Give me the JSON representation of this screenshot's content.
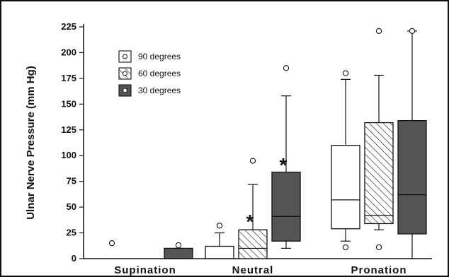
{
  "chart_data": {
    "type": "box",
    "ylabel": "Ulnar Nerve Pressure (mm Hg)",
    "ylim": [
      0,
      225
    ],
    "yticks": [
      "0",
      "25",
      "50",
      "75",
      "100",
      "125",
      "150",
      "175",
      "200",
      "225"
    ],
    "categories": [
      "Supination",
      "Neutral",
      "Pronation"
    ],
    "legend_position": "top-left",
    "series": [
      {
        "name": "90 degrees",
        "fill": "#ffffff",
        "boxes": [
          {
            "category": "Supination",
            "min": 0,
            "q1": 0,
            "median": 0,
            "q3": 0,
            "max": 0,
            "outliers": [
              15
            ]
          },
          {
            "category": "Neutral",
            "min": 0,
            "q1": 0,
            "median": 0,
            "q3": 12,
            "max": 25,
            "outliers": [
              32
            ]
          },
          {
            "category": "Pronation",
            "min": 17,
            "q1": 29,
            "median": 57,
            "q3": 110,
            "max": 174,
            "outliers": [
              11,
              180
            ]
          }
        ]
      },
      {
        "name": "60 degrees",
        "fill": "hatch",
        "boxes": [
          {
            "category": "Supination",
            "min": 0,
            "q1": 0,
            "median": 0,
            "q3": 0,
            "max": 0,
            "outliers": []
          },
          {
            "category": "Neutral",
            "min": 0,
            "q1": 0,
            "median": 10,
            "q3": 28,
            "max": 72,
            "outliers": [
              95
            ]
          },
          {
            "category": "Pronation",
            "min": 28,
            "q1": 34,
            "median": 42,
            "q3": 132,
            "max": 178,
            "outliers": [
              11,
              221
            ]
          }
        ]
      },
      {
        "name": "30 degrees",
        "fill": "#555555",
        "boxes": [
          {
            "category": "Supination",
            "min": 0,
            "q1": 0,
            "median": 0,
            "q3": 10,
            "max": 10,
            "outliers": [
              13
            ]
          },
          {
            "category": "Neutral",
            "min": 10,
            "q1": 17,
            "median": 41,
            "q3": 84,
            "max": 158,
            "outliers": [
              185
            ]
          },
          {
            "category": "Pronation",
            "min": 0,
            "q1": 24,
            "median": 62,
            "q3": 134,
            "max": 221,
            "outliers": [
              221
            ]
          }
        ]
      }
    ],
    "annotations": [
      {
        "text": "*",
        "category": "Neutral",
        "series": "60 degrees",
        "y": 35
      },
      {
        "text": "*",
        "category": "Neutral",
        "series": "30 degrees",
        "y": 90
      }
    ]
  }
}
